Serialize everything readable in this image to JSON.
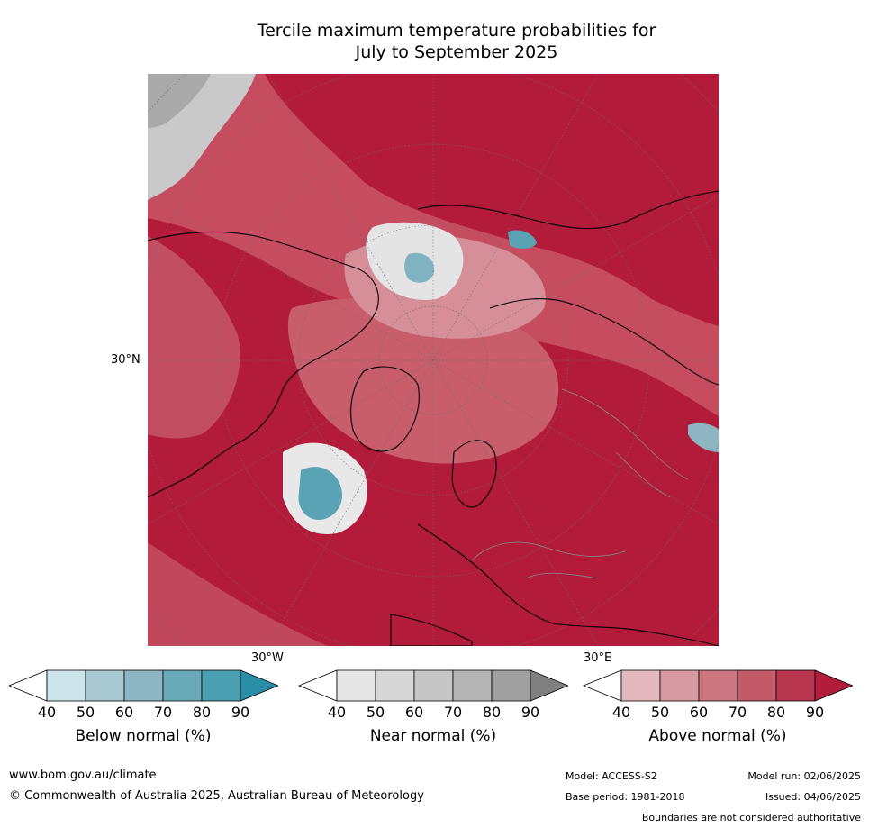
{
  "title": {
    "line1": "Tercile maximum temperature probabilities for",
    "line2": "July to September 2025"
  },
  "map": {
    "lat_label": "30°N",
    "lon_labels": [
      "30°W",
      "30°E"
    ]
  },
  "legends": [
    {
      "title": "Below normal (%)",
      "ticks": [
        "40",
        "50",
        "60",
        "70",
        "80",
        "90"
      ],
      "colors": [
        "#ffffff",
        "#cde3ea",
        "#a8c9d1",
        "#8db5c2",
        "#6aa9b7",
        "#4a9fb1",
        "#2a8fa6"
      ]
    },
    {
      "title": "Near normal (%)",
      "ticks": [
        "40",
        "50",
        "60",
        "70",
        "80",
        "90"
      ],
      "colors": [
        "#ffffff",
        "#e6e6e6",
        "#d7d7d7",
        "#c6c6c6",
        "#b4b4b4",
        "#a0a0a0",
        "#808080"
      ]
    },
    {
      "title": "Above normal (%)",
      "ticks": [
        "40",
        "50",
        "60",
        "70",
        "80",
        "90"
      ],
      "colors": [
        "#ffffff",
        "#e3b9bf",
        "#d79aa3",
        "#cb7681",
        "#c25a69",
        "#b93650",
        "#b01c3a"
      ]
    }
  ],
  "footer": {
    "url": "www.bom.gov.au/climate",
    "copyright": "© Commonwealth of Australia 2025, Australian Bureau of Meteorology",
    "model": "Model: ACCESS-S2",
    "base_period": "Base period: 1981-2018",
    "model_run": "Model run: 02/06/2025",
    "issued": "Issued: 04/06/2025",
    "disclaimer": "Boundaries are not considered authoritative"
  }
}
